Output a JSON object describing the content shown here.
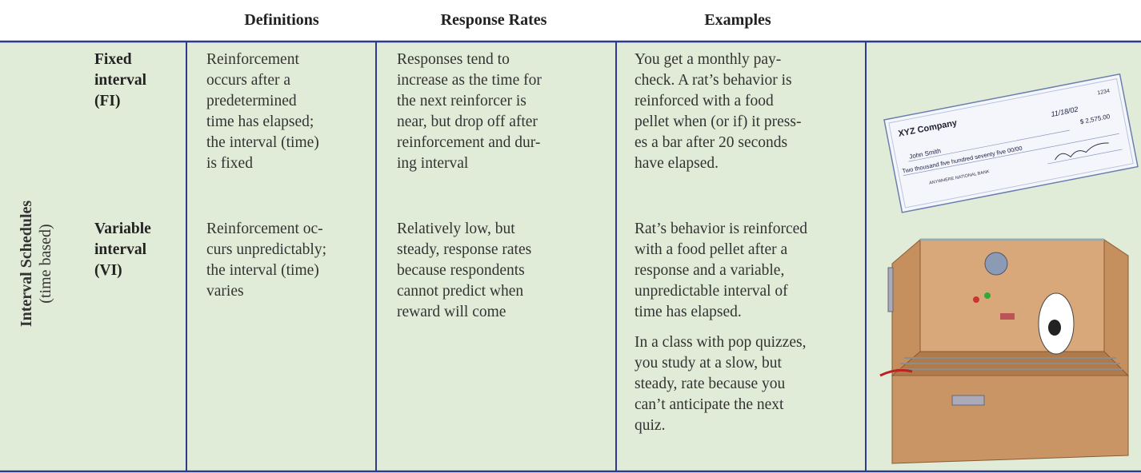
{
  "header": {
    "columns": [
      "Definitions",
      "Response Rates",
      "Examples"
    ]
  },
  "table": {
    "group_label": [
      "Interval Schedules",
      "(time based)"
    ],
    "rows": [
      {
        "schedule": [
          "Fixed",
          "interval",
          "(FI)"
        ],
        "definition": [
          "Reinforcement",
          "occurs after a",
          "predetermined",
          "time has elapsed;",
          "the interval (time)",
          "is fixed"
        ],
        "response_rate": [
          "Responses tend to",
          "increase as the time for",
          "the next reinforcer is",
          "near, but drop off after",
          "reinforcement and dur-",
          "ing interval"
        ],
        "examples": [
          [
            "You get a monthly pay-",
            "check. A rat’s behavior is",
            "reinforced with a food",
            "pellet when (or if) it press-",
            "es a bar after 20 seconds",
            "have elapsed."
          ]
        ]
      },
      {
        "schedule": [
          "Variable",
          "interval",
          "(VI)"
        ],
        "definition": [
          "Reinforcement oc-",
          "curs unpredictably;",
          "the interval (time)",
          "varies"
        ],
        "response_rate": [
          "Relatively low, but",
          "steady, response rates",
          "because respondents",
          "cannot predict when",
          "reward will come"
        ],
        "examples": [
          [
            "Rat’s behavior is reinforced",
            "with a food pellet after a",
            "response and a variable,",
            "unpredictable interval of",
            "time has elapsed."
          ],
          [
            "In a class with pop quizzes,",
            "you study at a slow, but",
            "steady, rate because you",
            "can’t anticipate the next",
            "quiz."
          ]
        ]
      }
    ]
  },
  "illustration": {
    "check": {
      "company": "XYZ Company",
      "number": "1234",
      "date": "11/18/02",
      "payee": "John Smith",
      "amount": "$ 2,575.00",
      "amount_words": "Two thousand five hundred seventy five  00/00",
      "bank": "ANYWHERE NATIONAL BANK"
    }
  }
}
